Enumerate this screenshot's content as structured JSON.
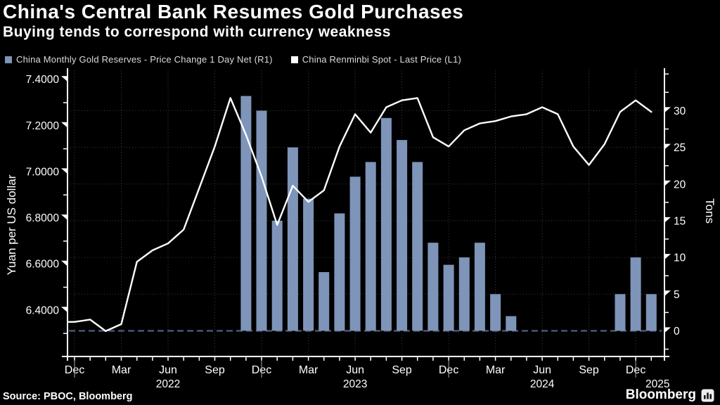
{
  "header": {
    "title": "China's Central Bank Resumes Gold Purchases",
    "subtitle": "Buying tends to correspond with currency weakness"
  },
  "legend": {
    "items": [
      {
        "label": "China Monthly Gold Reserves - Price Change 1 Day Net (R1)",
        "color": "#7e94b8",
        "marker": "square"
      },
      {
        "label": "China Renminbi Spot - Last Price (L1)",
        "color": "#ffffff",
        "marker": "square"
      }
    ]
  },
  "footer": {
    "source": "Source: PBOC, Bloomberg",
    "brand": "Bloomberg"
  },
  "chart_data": {
    "type": "bar",
    "note": "dual-axis combo: bars on right axis (tons), line on left axis (yuan per USD)",
    "months": [
      "2021-12",
      "2022-01",
      "2022-02",
      "2022-03",
      "2022-04",
      "2022-05",
      "2022-06",
      "2022-07",
      "2022-08",
      "2022-09",
      "2022-10",
      "2022-11",
      "2022-12",
      "2023-01",
      "2023-02",
      "2023-03",
      "2023-04",
      "2023-05",
      "2023-06",
      "2023-07",
      "2023-08",
      "2023-09",
      "2023-10",
      "2023-11",
      "2023-12",
      "2024-01",
      "2024-02",
      "2024-03",
      "2024-04",
      "2024-05",
      "2024-06",
      "2024-07",
      "2024-08",
      "2024-09",
      "2024-10",
      "2024-11",
      "2024-12",
      "2025-01"
    ],
    "series": [
      {
        "name": "China Monthly Gold Reserves - Price Change 1 Day Net (R1)",
        "type": "bar",
        "axis": "right",
        "color": "#7e94b8",
        "values": [
          0,
          0,
          0,
          0,
          0,
          0,
          0,
          0,
          0,
          0,
          0,
          32,
          30,
          15,
          25,
          18,
          8,
          16,
          21,
          23,
          29,
          26,
          23,
          12,
          9,
          10,
          12,
          5,
          2,
          0,
          0,
          0,
          0,
          0,
          0,
          5,
          10,
          5
        ]
      },
      {
        "name": "China Renminbi Spot - Last Price (L1)",
        "type": "line",
        "axis": "left",
        "color": "#ffffff",
        "values": [
          6.35,
          6.36,
          6.31,
          6.34,
          6.61,
          6.66,
          6.69,
          6.75,
          6.93,
          7.11,
          7.32,
          7.16,
          6.98,
          6.77,
          6.94,
          6.87,
          6.92,
          7.11,
          7.25,
          7.17,
          7.28,
          7.31,
          7.32,
          7.15,
          7.11,
          7.18,
          7.21,
          7.22,
          7.24,
          7.25,
          7.28,
          7.25,
          7.11,
          7.03,
          7.12,
          7.26,
          7.31,
          7.26
        ]
      }
    ],
    "left_axis": {
      "title": "Yuan per US dollar",
      "min": 6.2,
      "max": 7.44,
      "ticks": [
        7.4,
        7.2,
        7.0,
        6.8,
        6.6,
        6.4
      ],
      "tick_labels": [
        "7.4000",
        "7.2000",
        "7.0000",
        "6.8000",
        "6.6000",
        "6.4000"
      ],
      "minor_ticks": [
        7.3,
        7.1,
        6.9,
        6.7,
        6.5,
        6.3
      ]
    },
    "right_axis": {
      "title": "Tons",
      "min": -3.5,
      "max": 35.5,
      "ticks": [
        30,
        25,
        20,
        15,
        10,
        5,
        0
      ],
      "tick_labels": [
        "30",
        "25",
        "20",
        "15",
        "10",
        "5",
        "0"
      ],
      "minor_ticks": [
        35,
        32.5,
        27.5,
        22.5,
        17.5,
        12.5,
        7.5,
        2.5,
        -2.5
      ]
    },
    "x_axis": {
      "tick_month_indices": [
        0,
        3,
        6,
        9,
        12,
        15,
        18,
        21,
        24,
        27,
        30,
        33,
        36
      ],
      "tick_month_labels": [
        "Dec",
        "Mar",
        "Jun",
        "Sep",
        "Dec",
        "Mar",
        "Jun",
        "Sep",
        "Dec",
        "Mar",
        "Jun",
        "Sep",
        "Dec"
      ],
      "year_labels": [
        {
          "text": "2022",
          "month_index": 6,
          "dx": 0
        },
        {
          "text": "2023",
          "month_index": 18,
          "dx": 0
        },
        {
          "text": "2024",
          "month_index": 30,
          "dx": 0
        },
        {
          "text": "2025",
          "month_index": 37,
          "dx": 9
        }
      ],
      "year_divider_month_indices": [
        0,
        12,
        24,
        36
      ]
    },
    "grid": {
      "color": "#3d3d3d",
      "style": "dotted"
    },
    "zero_line": {
      "color": "#4e5f80",
      "dash": "9 5"
    },
    "background": "#000000"
  }
}
